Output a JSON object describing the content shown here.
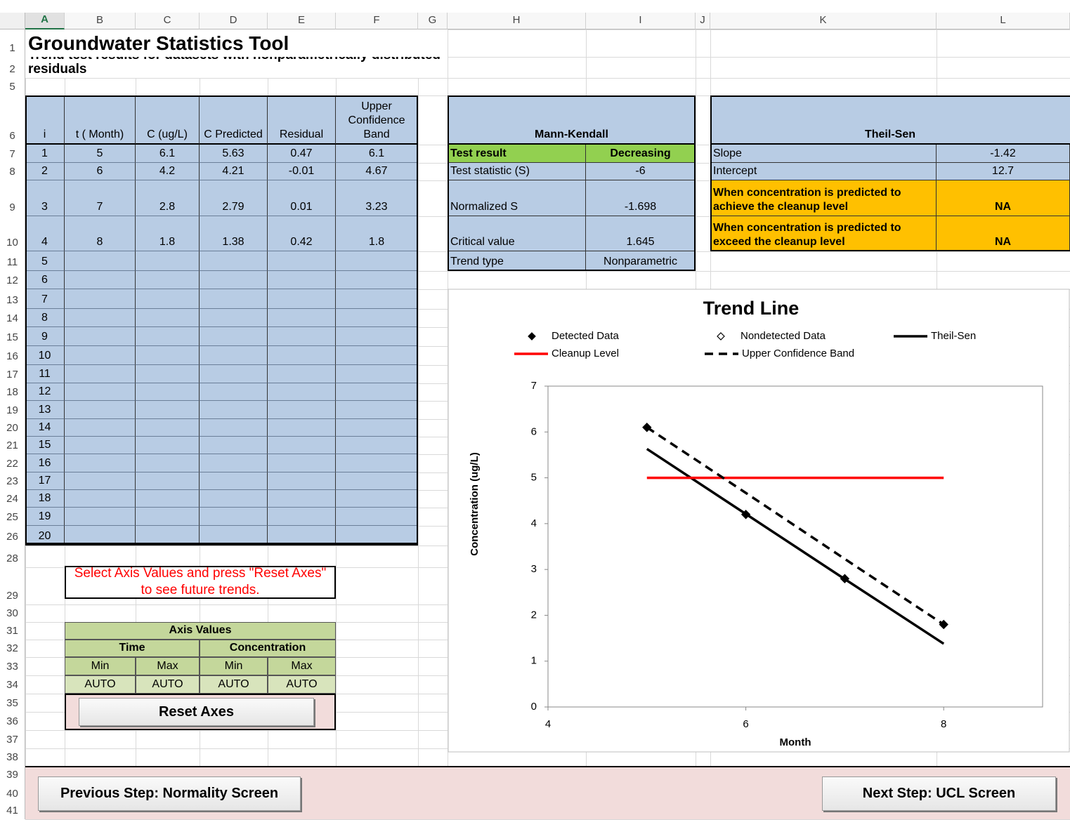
{
  "column_headers": [
    "A",
    "B",
    "C",
    "D",
    "E",
    "F",
    "G",
    "H",
    "I",
    "J",
    "K",
    "L"
  ],
  "row_numbers": [
    1,
    2,
    5,
    6,
    7,
    8,
    9,
    10,
    11,
    12,
    13,
    14,
    15,
    16,
    17,
    18,
    19,
    20,
    21,
    22,
    23,
    24,
    25,
    26,
    28,
    29,
    30,
    31,
    32,
    33,
    34,
    35,
    36,
    37,
    38,
    39,
    40,
    41
  ],
  "header": {
    "title": "Groundwater Statistics Tool",
    "subtitle": "Trend test results for datasets with nonparametrically distributed residuals"
  },
  "data_table": {
    "headers": [
      "i",
      "t ( Month)",
      "C (ug/L)",
      "C Predicted",
      "Residual",
      "Upper Confidence Band"
    ],
    "rows": [
      [
        1,
        5,
        6.1,
        5.63,
        0.47,
        6.1
      ],
      [
        2,
        6,
        4.2,
        4.21,
        -0.01,
        4.67
      ],
      [
        3,
        7,
        2.8,
        2.79,
        0.01,
        3.23
      ],
      [
        4,
        8,
        1.8,
        1.38,
        0.42,
        1.8
      ],
      [
        5
      ],
      [
        6
      ],
      [
        7
      ],
      [
        8
      ],
      [
        9
      ],
      [
        10
      ],
      [
        11
      ],
      [
        12
      ],
      [
        13
      ],
      [
        14
      ],
      [
        15
      ],
      [
        16
      ],
      [
        17
      ],
      [
        18
      ],
      [
        19
      ],
      [
        20
      ]
    ]
  },
  "mann_kendall": {
    "title": "Mann-Kendall",
    "rows": [
      [
        "Test result",
        "Decreasing"
      ],
      [
        "Test statistic (S)",
        -6
      ],
      [
        "Normalized S",
        -1.698
      ],
      [
        "Critical value",
        1.645
      ],
      [
        "Trend type",
        "Nonparametric"
      ]
    ]
  },
  "theil_sen": {
    "title": "Theil-Sen",
    "rows": [
      [
        "Slope",
        -1.42
      ],
      [
        "Intercept",
        12.7
      ],
      [
        "When concentration is predicted to achieve the cleanup level",
        "NA"
      ],
      [
        "When concentration is predicted to exceed the cleanup level",
        "NA"
      ]
    ]
  },
  "note": "Select Axis Values and press \"Reset Axes\" to see future trends.",
  "axis_values": {
    "title": "Axis Values",
    "groups": [
      "Time",
      "Concentration"
    ],
    "subheaders": [
      "Min",
      "Max",
      "Min",
      "Max"
    ],
    "values": [
      "AUTO",
      "AUTO",
      "AUTO",
      "AUTO"
    ]
  },
  "buttons": {
    "reset": "Reset Axes",
    "previous": "Previous Step:  Normality Screen",
    "next": "Next Step:  UCL Screen"
  },
  "chart_data": {
    "type": "line",
    "title": "Trend Line",
    "x_label": "Month",
    "y_label": "Concentration (ug/L)",
    "xlim": [
      4,
      9
    ],
    "xticks": [
      4,
      6,
      8
    ],
    "ylim": [
      0,
      7
    ],
    "yticks": [
      0,
      1,
      2,
      3,
      4,
      5,
      6,
      7
    ],
    "series": [
      {
        "name": "Detected Data",
        "color": "#000000",
        "style": "marker",
        "x": [
          5,
          6,
          7,
          8
        ],
        "values": [
          6.1,
          4.2,
          2.8,
          1.8
        ]
      },
      {
        "name": "Nondetected Data",
        "color": "#000000",
        "style": "open-marker",
        "x": [],
        "values": []
      },
      {
        "name": "Theil-Sen",
        "color": "#000000",
        "style": "solid",
        "x": [
          5,
          6,
          7,
          8
        ],
        "values": [
          5.63,
          4.21,
          2.79,
          1.38
        ]
      },
      {
        "name": "Cleanup Level",
        "color": "#ff0000",
        "style": "solid",
        "x": [
          5,
          8
        ],
        "values": [
          5,
          5
        ]
      },
      {
        "name": "Upper Confidence Band",
        "color": "#000000",
        "style": "dashed",
        "x": [
          5,
          6,
          7,
          8
        ],
        "values": [
          6.1,
          4.67,
          3.23,
          1.8
        ]
      }
    ]
  }
}
